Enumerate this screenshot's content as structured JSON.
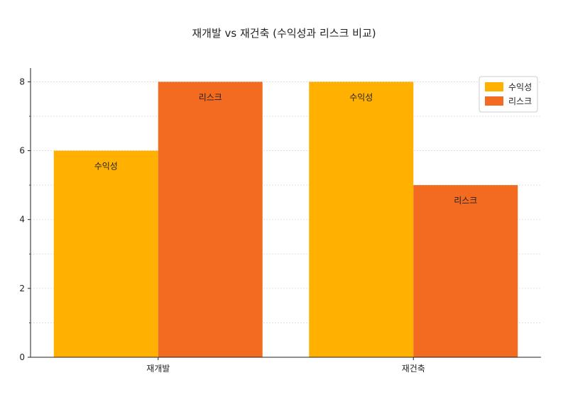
{
  "chart_data": {
    "type": "bar",
    "title": "재개발 vs 재건축 (수익성과 리스크 비교)",
    "xlabel": "",
    "ylabel": "",
    "categories": [
      "재개발",
      "재건축"
    ],
    "series": [
      {
        "name": "수익성",
        "values": [
          6,
          8
        ],
        "color": "#FFB000",
        "bar_label": "수익성"
      },
      {
        "name": "리스크",
        "values": [
          8,
          5
        ],
        "color": "#F26B21",
        "bar_label": "리스크"
      }
    ],
    "ylim": [
      0,
      8.4
    ],
    "yticks": [
      "0",
      "2",
      "4",
      "6",
      "8"
    ],
    "grid": "horizontal dashed",
    "legend_position": "top-right"
  }
}
